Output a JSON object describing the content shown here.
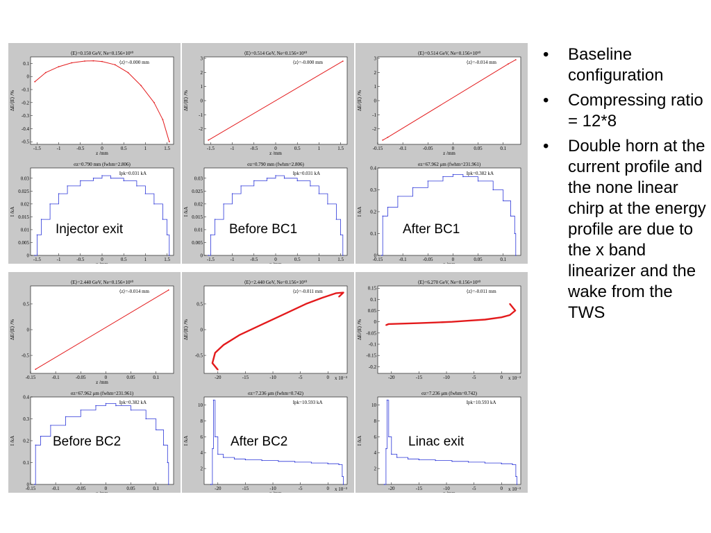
{
  "bullets": [
    "Baseline configuration",
    "Compressing ratio = 12*8",
    "Double horn at the current profile and the none linear chirp at the energy profile are due to the x band linearizer and the wake from the TWS"
  ],
  "chart_data": [
    {
      "stage": "Injector exit",
      "energy_plot": {
        "type": "scatter",
        "title": "⟨E⟩=0.150 GeV, Ne=0.156×10¹⁰",
        "annotation": "⟨z⟩=-0.000 mm",
        "xlabel": "z /mm",
        "ylabel": "ΔE/⟨E⟩ /%",
        "xlim": [
          -1.65,
          1.65
        ],
        "ylim": [
          -0.52,
          0.15
        ],
        "xticks": [
          -1.5,
          -1,
          -0.5,
          0,
          0.5,
          1,
          1.5
        ],
        "xtick_labels": [
          "-1.5",
          "-1",
          "-0.5",
          "0",
          "0.5",
          "1",
          "1.5"
        ],
        "yticks": [
          -0.5,
          -0.4,
          -0.3,
          -0.2,
          -0.1,
          0,
          0.1
        ],
        "ytick_labels": [
          "-0.5",
          "-0.4",
          "-0.3",
          "-0.2",
          "-0.1",
          "0",
          "0.1"
        ],
        "x": [
          -1.55,
          -1.3,
          -1.0,
          -0.7,
          -0.4,
          -0.2,
          0.0,
          0.3,
          0.6,
          0.9,
          1.2,
          1.4,
          1.55
        ],
        "y": [
          -0.04,
          0.03,
          0.075,
          0.105,
          0.118,
          0.12,
          0.115,
          0.09,
          0.03,
          -0.07,
          -0.2,
          -0.33,
          -0.5
        ]
      },
      "current_plot": {
        "type": "line",
        "title": "σz=0.790 mm (fwhm=2.806)",
        "annotation": "Ipk=0.031 kA",
        "xlabel": "z /mm",
        "ylabel": "I /kA",
        "xlim": [
          -1.65,
          1.65
        ],
        "ylim": [
          0,
          0.034
        ],
        "xticks": [
          -1.5,
          -1,
          -0.5,
          0,
          0.5,
          1,
          1.5
        ],
        "xtick_labels": [
          "-1.5",
          "-1",
          "-0.5",
          "0",
          "0.5",
          "1",
          "1.5"
        ],
        "yticks": [
          0,
          0.005,
          0.01,
          0.015,
          0.02,
          0.025,
          0.03
        ],
        "ytick_labels": [
          "0",
          "0.005",
          "0.01",
          "0.015",
          "0.02",
          "0.025",
          "0.03"
        ],
        "x": [
          -1.55,
          -1.5,
          -1.4,
          -1.2,
          -1.0,
          -0.8,
          -0.5,
          -0.2,
          0.0,
          0.2,
          0.5,
          0.8,
          1.0,
          1.2,
          1.4,
          1.5,
          1.55
        ],
        "y": [
          0,
          0.008,
          0.014,
          0.02,
          0.024,
          0.027,
          0.029,
          0.03,
          0.031,
          0.03,
          0.029,
          0.027,
          0.024,
          0.02,
          0.014,
          0.008,
          0
        ]
      }
    },
    {
      "stage": "Before BC1",
      "energy_plot": {
        "type": "scatter",
        "title": "⟨E⟩=0.514 GeV, Ne=0.156×10¹⁰",
        "annotation": "⟨z⟩=-0.000 mm",
        "xlabel": "z /mm",
        "ylabel": "ΔE/⟨E⟩ /%",
        "xlim": [
          -1.65,
          1.65
        ],
        "ylim": [
          -3.1,
          3.1
        ],
        "xticks": [
          -1.5,
          -1,
          -0.5,
          0,
          0.5,
          1,
          1.5
        ],
        "xtick_labels": [
          "-1.5",
          "-1",
          "-0.5",
          "0",
          "0.5",
          "1",
          "1.5"
        ],
        "yticks": [
          -2,
          -1,
          0,
          1,
          2,
          3
        ],
        "ytick_labels": [
          "-2",
          "-1",
          "0",
          "1",
          "2",
          "3"
        ],
        "x": [
          -1.55,
          1.55
        ],
        "y": [
          -2.8,
          2.8
        ]
      },
      "current_plot": {
        "type": "line",
        "title": "σz=0.790 mm (fwhm=2.806)",
        "annotation": "Ipk=0.031 kA",
        "xlabel": "z /mm",
        "ylabel": "I /kA",
        "xlim": [
          -1.65,
          1.65
        ],
        "ylim": [
          0,
          0.034
        ],
        "xticks": [
          -1.5,
          -1,
          -0.5,
          0,
          0.5,
          1,
          1.5
        ],
        "xtick_labels": [
          "-1.5",
          "-1",
          "-0.5",
          "0",
          "0.5",
          "1",
          "1.5"
        ],
        "yticks": [
          0,
          0.005,
          0.01,
          0.015,
          0.02,
          0.025,
          0.03
        ],
        "ytick_labels": [
          "0",
          "0.005",
          "0.01",
          "0.015",
          "0.02",
          "0.025",
          "0.03"
        ],
        "x": [
          -1.55,
          -1.5,
          -1.4,
          -1.2,
          -1.0,
          -0.8,
          -0.5,
          -0.2,
          0.0,
          0.2,
          0.5,
          0.8,
          1.0,
          1.2,
          1.4,
          1.5,
          1.55
        ],
        "y": [
          0,
          0.008,
          0.014,
          0.02,
          0.024,
          0.027,
          0.029,
          0.03,
          0.031,
          0.03,
          0.029,
          0.027,
          0.024,
          0.02,
          0.014,
          0.008,
          0
        ]
      }
    },
    {
      "stage": "After BC1",
      "energy_plot": {
        "type": "scatter",
        "title": "⟨E⟩=0.514 GeV, Ne=0.156×10¹⁰",
        "annotation": "⟨z⟩=-0.014 mm",
        "xlabel": "z /mm",
        "ylabel": "ΔE/⟨E⟩ /%",
        "xlim": [
          -0.15,
          0.135
        ],
        "ylim": [
          -3.1,
          3.1
        ],
        "xticks": [
          -0.15,
          -0.1,
          -0.05,
          0,
          0.05,
          0.1
        ],
        "xtick_labels": [
          "-0.15",
          "-0.1",
          "-0.05",
          "0",
          "0.05",
          "0.1"
        ],
        "yticks": [
          -2,
          -1,
          0,
          1,
          2,
          3
        ],
        "ytick_labels": [
          "-2",
          "-1",
          "0",
          "1",
          "2",
          "3"
        ],
        "x": [
          -0.14,
          -0.13,
          0.11,
          0.125
        ],
        "y": [
          -2.8,
          -2.6,
          2.6,
          2.9
        ]
      },
      "current_plot": {
        "type": "line",
        "title": "σz=67.962 μm (fwhm=231.961)",
        "annotation": "Ipk=0.382 kA",
        "xlabel": "z /mm",
        "ylabel": "I /kA",
        "xlim": [
          -0.15,
          0.135
        ],
        "ylim": [
          0,
          0.4
        ],
        "xticks": [
          -0.15,
          -0.1,
          -0.05,
          0,
          0.05,
          0.1
        ],
        "xtick_labels": [
          "-0.15",
          "-0.1",
          "-0.05",
          "0",
          "0.05",
          "0.1"
        ],
        "yticks": [
          0,
          0.1,
          0.2,
          0.3,
          0.4
        ],
        "ytick_labels": [
          "0",
          "0.1",
          "0.2",
          "0.3",
          "0.4"
        ],
        "x": [
          -0.142,
          -0.14,
          -0.13,
          -0.11,
          -0.08,
          -0.05,
          -0.02,
          0.0,
          0.02,
          0.05,
          0.08,
          0.1,
          0.115,
          0.123,
          0.125
        ],
        "y": [
          0,
          0.18,
          0.22,
          0.27,
          0.31,
          0.34,
          0.36,
          0.37,
          0.36,
          0.34,
          0.3,
          0.25,
          0.18,
          0.1,
          0
        ]
      }
    },
    {
      "stage": "Before BC2",
      "energy_plot": {
        "type": "scatter",
        "title": "⟨E⟩=2.440 GeV, Ne=0.156×10¹⁰",
        "annotation": "⟨z⟩=-0.014 mm",
        "xlabel": "z /mm",
        "ylabel": "ΔE/⟨E⟩ /%",
        "xlim": [
          -0.15,
          0.135
        ],
        "ylim": [
          -0.85,
          0.85
        ],
        "xticks": [
          -0.15,
          -0.1,
          -0.05,
          0,
          0.05,
          0.1
        ],
        "xtick_labels": [
          "-0.15",
          "-0.1",
          "-0.05",
          "0",
          "0.05",
          "0.1"
        ],
        "yticks": [
          -0.5,
          0,
          0.5
        ],
        "ytick_labels": [
          "-0.5",
          "0",
          "0.5"
        ],
        "x": [
          -0.14,
          0.125
        ],
        "y": [
          -0.77,
          0.77
        ]
      },
      "current_plot": {
        "type": "line",
        "title": "σz=67.962 μm (fwhm=231.961)",
        "annotation": "Ipk=0.382 kA",
        "xlabel": "z /mm",
        "ylabel": "I /kA",
        "xlim": [
          -0.15,
          0.135
        ],
        "ylim": [
          0,
          0.4
        ],
        "xticks": [
          -0.15,
          -0.1,
          -0.05,
          0,
          0.05,
          0.1
        ],
        "xtick_labels": [
          "-0.15",
          "-0.1",
          "-0.05",
          "0",
          "0.05",
          "0.1"
        ],
        "yticks": [
          0,
          0.1,
          0.2,
          0.3,
          0.4
        ],
        "ytick_labels": [
          "0",
          "0.1",
          "0.2",
          "0.3",
          "0.4"
        ],
        "x": [
          -0.142,
          -0.14,
          -0.13,
          -0.11,
          -0.08,
          -0.05,
          -0.02,
          0.0,
          0.02,
          0.05,
          0.08,
          0.1,
          0.115,
          0.123,
          0.125
        ],
        "y": [
          0,
          0.18,
          0.22,
          0.27,
          0.31,
          0.34,
          0.36,
          0.37,
          0.36,
          0.34,
          0.3,
          0.25,
          0.18,
          0.1,
          0
        ]
      }
    },
    {
      "stage": "After BC2",
      "energy_plot": {
        "type": "scatter",
        "title": "⟨E⟩=2.440 GeV, Ne=0.156×10¹⁰",
        "annotation": "⟨z⟩=-0.011 mm",
        "xlabel": "",
        "ylabel": "ΔE/⟨E⟩ /%",
        "multiplier": "x 10⁻³",
        "xlim": [
          -22.5,
          3.5
        ],
        "ylim": [
          -0.85,
          0.85
        ],
        "xticks": [
          -20,
          -15,
          -10,
          -5,
          0
        ],
        "xtick_labels": [
          "-20",
          "-15",
          "-10",
          "-5",
          "0"
        ],
        "yticks": [
          -0.5,
          0,
          0.5
        ],
        "ytick_labels": [
          "-0.5",
          "0",
          "0.5"
        ],
        "x": [
          -20.0,
          -21.0,
          -20.5,
          -19.0,
          -16.0,
          -12.0,
          -8.0,
          -4.0,
          -1.0,
          1.5,
          2.8,
          2.0
        ],
        "y": [
          -0.78,
          -0.65,
          -0.45,
          -0.3,
          -0.1,
          0.1,
          0.3,
          0.5,
          0.62,
          0.71,
          0.72,
          0.64
        ]
      },
      "current_plot": {
        "type": "line",
        "title": "σz=7.236 μm (fwhm=0.742)",
        "annotation": "Ipk=10.593 kA",
        "xlabel": "z /mm",
        "ylabel": "I /kA",
        "multiplier": "x 10⁻³",
        "xlim": [
          -22.5,
          3.5
        ],
        "ylim": [
          0,
          11
        ],
        "xticks": [
          -20,
          -15,
          -10,
          -5,
          0
        ],
        "xtick_labels": [
          "-20",
          "-15",
          "-10",
          "-5",
          "0"
        ],
        "yticks": [
          2,
          4,
          6,
          8,
          10
        ],
        "ytick_labels": [
          "2",
          "4",
          "6",
          "8",
          "10"
        ],
        "x": [
          -21.3,
          -21.0,
          -20.8,
          -20.5,
          -20.0,
          -19.0,
          -17.0,
          -15.0,
          -12.0,
          -9.0,
          -6.0,
          -3.0,
          0.0,
          2.0,
          2.6,
          2.8
        ],
        "y": [
          0,
          4.5,
          10.6,
          6.0,
          3.8,
          3.4,
          3.2,
          3.1,
          3.0,
          2.9,
          2.8,
          2.7,
          2.6,
          2.5,
          1.0,
          0
        ]
      }
    },
    {
      "stage": "Linac exit",
      "energy_plot": {
        "type": "scatter",
        "title": "⟨E⟩=6.270 GeV, Ne=0.156×10¹⁰",
        "annotation": "⟨z⟩=-0.011 mm",
        "xlabel": "",
        "ylabel": "ΔE/⟨E⟩ /%",
        "multiplier": "x 10⁻³",
        "xlim": [
          -22.5,
          3.5
        ],
        "ylim": [
          -0.23,
          0.16
        ],
        "xticks": [
          -20,
          -15,
          -10,
          -5,
          0
        ],
        "xtick_labels": [
          "-20",
          "-15",
          "-10",
          "-5",
          "0"
        ],
        "yticks": [
          -0.2,
          -0.15,
          -0.1,
          -0.05,
          0,
          0.05,
          0.1,
          0.15
        ],
        "ytick_labels": [
          "-0.2",
          "-0.15",
          "-0.1",
          "-0.05",
          "0",
          "0.05",
          "0.1",
          "0.15"
        ],
        "x": [
          -21.0,
          -20.5,
          -18.0,
          -15.0,
          -12.0,
          -9.0,
          -6.0,
          -3.0,
          0.0,
          1.5,
          2.5,
          1.5
        ],
        "y": [
          -0.015,
          -0.01,
          -0.008,
          -0.006,
          -0.003,
          0.0,
          0.005,
          0.01,
          0.02,
          0.03,
          0.05,
          0.08
        ]
      },
      "current_plot": {
        "type": "line",
        "title": "σz=7.236 μm (fwhm=0.742)",
        "annotation": "Ipk=10.593 kA",
        "xlabel": "z /mm",
        "ylabel": "I /kA",
        "multiplier": "x 10⁻³",
        "xlim": [
          -22.5,
          3.5
        ],
        "ylim": [
          0,
          11
        ],
        "xticks": [
          -20,
          -15,
          -10,
          -5,
          0
        ],
        "xtick_labels": [
          "-20",
          "-15",
          "-10",
          "-5",
          "0"
        ],
        "yticks": [
          2,
          4,
          6,
          8,
          10
        ],
        "ytick_labels": [
          "2",
          "4",
          "6",
          "8",
          "10"
        ],
        "x": [
          -21.3,
          -21.0,
          -20.8,
          -20.5,
          -20.0,
          -19.0,
          -17.0,
          -15.0,
          -12.0,
          -9.0,
          -6.0,
          -3.0,
          0.0,
          2.0,
          2.6,
          2.8
        ],
        "y": [
          0,
          4.5,
          10.6,
          6.0,
          3.8,
          3.4,
          3.2,
          3.1,
          3.0,
          2.9,
          2.8,
          2.7,
          2.6,
          2.5,
          1.0,
          0
        ]
      }
    }
  ]
}
